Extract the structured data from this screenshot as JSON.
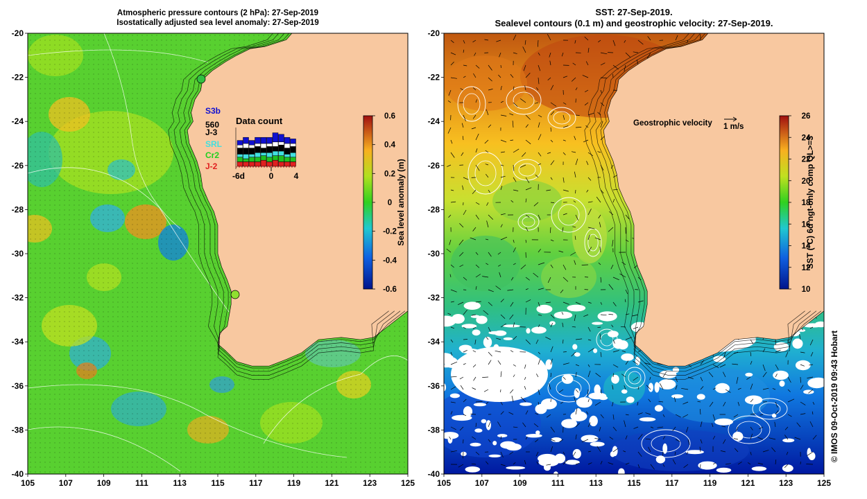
{
  "left_map": {
    "title_line1": "Atmospheric pressure contours (2 hPa): 27-Sep-2019",
    "title_line2": "Isostatically adjusted sea level anomaly: 27-Sep-2019",
    "colorbar": {
      "label": "Sea level anomaly (m)",
      "ticks": [
        "0.6",
        "0.4",
        "0.2",
        "0",
        "-0.2",
        "-0.4",
        "-0.6"
      ],
      "min": -0.6,
      "max": 0.6
    },
    "inset": {
      "title": "Data count",
      "x_ticks": [
        "-6d",
        "0",
        "4"
      ],
      "legend": [
        {
          "label": "S3b",
          "color": "#1010d0"
        },
        {
          "label": "560",
          "color": "#000000"
        },
        {
          "label": "J-3",
          "color": "#000000"
        },
        {
          "label": "SRL",
          "color": "#40e0e0"
        },
        {
          "label": "Cr2",
          "color": "#20d020"
        },
        {
          "label": "J-2",
          "color": "#e02020"
        }
      ]
    }
  },
  "right_map": {
    "title_line1": "SST: 27-Sep-2019.",
    "title_line2": "Sealevel contours (0.1 m) and geostrophic velocity: 27-Sep-2019.",
    "velocity_label": "Geostrophic velocity",
    "velocity_scale": "1 m/s",
    "colorbar": {
      "label": "SST (°C) 6d ngt-only comp QL>=3",
      "ticks": [
        "26",
        "24",
        "22",
        "20",
        "18",
        "16",
        "14",
        "12",
        "10"
      ],
      "min": 10,
      "max": 26
    }
  },
  "axes": {
    "x_ticks": [
      "105",
      "107",
      "109",
      "111",
      "113",
      "115",
      "117",
      "119",
      "121",
      "123",
      "125"
    ],
    "y_ticks": [
      "-20",
      "-22",
      "-24",
      "-26",
      "-28",
      "-30",
      "-32",
      "-34",
      "-36",
      "-38",
      "-40"
    ]
  },
  "credit": "© IMOS 09-Oct-2019 09:43 Hobart",
  "colors": {
    "land": "#f8c8a0",
    "cloud": "#ffffff",
    "contour": "#ffffff",
    "coast_shelf": "#000000"
  }
}
